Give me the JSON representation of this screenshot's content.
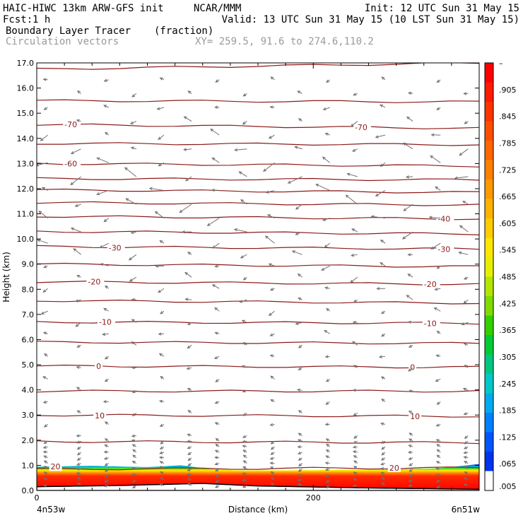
{
  "header": {
    "model": "HAIC-HIWC 13km ARW-GFS init",
    "org": "NCAR/MMM",
    "init": "Init: 12 UTC Sun 31 May 15",
    "fcst_label": "Fcst:",
    "fcst_value": "1 h",
    "valid": "Valid: 13 UTC Sun 31 May 15 (10 LST Sun 31 May 15)",
    "field": "Boundary Layer Tracer",
    "units": "(fraction)",
    "vectors": "Circulation vectors",
    "xy": "XY= 259.5, 91.6 to 274.6,110.2"
  },
  "chart_data": {
    "type": "heatmap",
    "xlabel": "Distance (km)",
    "ylabel": "Height (km)",
    "xlim": [
      0,
      320
    ],
    "ylim": [
      0,
      17
    ],
    "x_ticks": [
      0,
      200
    ],
    "y_ticks": [
      "0.0",
      "1.0",
      "2.0",
      "3.0",
      "4.0",
      "5.0",
      "6.0",
      "7.0",
      "8.0",
      "9.0",
      "10.0",
      "11.0",
      "12.0",
      "13.0",
      "14.0",
      "15.0",
      "16.0",
      "17.0"
    ],
    "x_endpoints": {
      "left": "4n53w",
      "right": "6n51w"
    },
    "colorbar": {
      "labels": [
        "–",
        ".905",
        ".845",
        ".785",
        ".725",
        ".665",
        ".605",
        ".545",
        ".485",
        ".425",
        ".365",
        ".305",
        ".245",
        ".185",
        ".125",
        ".065",
        ".005"
      ],
      "colors": [
        "#ff0000",
        "#ff1a00",
        "#ff3300",
        "#ff4d00",
        "#ff6600",
        "#ff8000",
        "#ff9900",
        "#ffb300",
        "#ffcc00",
        "#ffe600",
        "#e6f000",
        "#b3e600",
        "#80dc00",
        "#33d100",
        "#00cc33",
        "#00c880",
        "#00c8c8",
        "#00aaee",
        "#0080ff",
        "#0055ff",
        "#0033ee",
        "#ffffff"
      ]
    },
    "tracer_top_km": [
      {
        "x": 0,
        "z": 0.95
      },
      {
        "x": 40,
        "z": 0.98
      },
      {
        "x": 80,
        "z": 0.93
      },
      {
        "x": 105,
        "z": 1.0
      },
      {
        "x": 125,
        "z": 0.85
      },
      {
        "x": 145,
        "z": 0.8
      },
      {
        "x": 180,
        "z": 0.8
      },
      {
        "x": 220,
        "z": 0.82
      },
      {
        "x": 260,
        "z": 0.84
      },
      {
        "x": 290,
        "z": 0.88
      },
      {
        "x": 320,
        "z": 1.05
      }
    ],
    "terrain_km": [
      {
        "x": 0,
        "z": 0.15
      },
      {
        "x": 60,
        "z": 0.2
      },
      {
        "x": 120,
        "z": 0.28
      },
      {
        "x": 160,
        "z": 0.18
      },
      {
        "x": 240,
        "z": 0.1
      },
      {
        "x": 320,
        "z": 0.05
      }
    ],
    "isotherms": [
      {
        "level": 20,
        "z0": 0.85,
        "z1": 0.9
      },
      {
        "level": 15,
        "z0": 1.95,
        "z1": 1.9
      },
      {
        "level": 10,
        "z0": 3.0,
        "z1": 2.95
      },
      {
        "level": 5,
        "z0": 3.95,
        "z1": 3.95
      },
      {
        "level": 0,
        "z0": 4.95,
        "z1": 4.9
      },
      {
        "level": -5,
        "z0": 5.9,
        "z1": 5.85
      },
      {
        "level": -10,
        "z0": 6.7,
        "z1": 6.65
      },
      {
        "level": -15,
        "z0": 7.55,
        "z1": 7.45
      },
      {
        "level": -20,
        "z0": 8.3,
        "z1": 8.2
      },
      {
        "level": -25,
        "z0": 9.0,
        "z1": 8.9
      },
      {
        "level": -30,
        "z0": 9.7,
        "z1": 9.6
      },
      {
        "level": -35,
        "z0": 10.3,
        "z1": 10.2
      },
      {
        "level": -40,
        "z0": 10.9,
        "z1": 10.8
      },
      {
        "level": -45,
        "z0": 11.45,
        "z1": 11.35
      },
      {
        "level": -50,
        "z0": 11.95,
        "z1": 11.85
      },
      {
        "level": -55,
        "z0": 12.4,
        "z1": 12.35
      },
      {
        "level": -60,
        "z0": 13.0,
        "z1": 12.9
      },
      {
        "level": -65,
        "z0": 13.8,
        "z1": 13.75
      },
      {
        "level": -70,
        "z0": 14.55,
        "z1": 14.4
      },
      {
        "level": -75,
        "z0": 15.5,
        "z1": 15.45
      },
      {
        "level": -80,
        "z0": 16.75,
        "z1": 17.0
      }
    ],
    "isotherm_labels": [
      {
        "text": "20",
        "x": 10,
        "z": 0.95
      },
      {
        "text": "20",
        "x": 255,
        "z": 0.9
      },
      {
        "text": "10",
        "x": 42,
        "z": 2.98
      },
      {
        "text": "10",
        "x": 270,
        "z": 2.95
      },
      {
        "text": "0",
        "x": 43,
        "z": 4.95
      },
      {
        "text": "0",
        "x": 270,
        "z": 4.9
      },
      {
        "text": "-10",
        "x": 45,
        "z": 6.7
      },
      {
        "text": "-10",
        "x": 280,
        "z": 6.65
      },
      {
        "text": "-20",
        "x": 37,
        "z": 8.3
      },
      {
        "text": "-20",
        "x": 280,
        "z": 8.2
      },
      {
        "text": "-30",
        "x": 52,
        "z": 9.65
      },
      {
        "text": "-30",
        "x": 290,
        "z": 9.6
      },
      {
        "text": "-40",
        "x": 290,
        "z": 10.8
      },
      {
        "text": "-60",
        "x": 20,
        "z": 13.0
      },
      {
        "text": "-70",
        "x": 20,
        "z": 14.55
      },
      {
        "text": "-70",
        "x": 230,
        "z": 14.45
      }
    ],
    "wind_speed_profile": [
      {
        "z": 1.5,
        "u": -0.2
      },
      {
        "z": 3,
        "u": -0.3
      },
      {
        "z": 5,
        "u": -0.35
      },
      {
        "z": 7,
        "u": -0.45
      },
      {
        "z": 9,
        "u": -0.6
      },
      {
        "z": 11,
        "u": -0.95
      },
      {
        "z": 12.5,
        "u": -1.0
      },
      {
        "z": 14,
        "u": -0.7
      },
      {
        "z": 16,
        "u": -0.3
      }
    ]
  }
}
